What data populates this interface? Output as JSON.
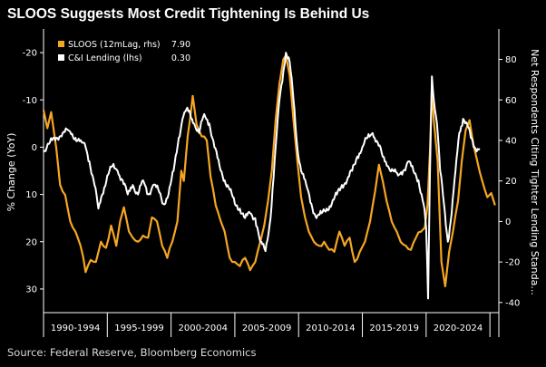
{
  "chart_data": {
    "type": "line",
    "title": "SLOOS Suggests Most Credit Tightening Is Behind Us",
    "source": "Source: Federal Reserve, Bloomberg Economics",
    "ylabel_left": "% Change (YoY)",
    "ylabel_right": "Net Respondents Citing Tighter Lending Standa...",
    "left_axis": {
      "ylim": [
        35,
        -25
      ],
      "ticks": [
        "-20",
        "-10",
        "0",
        "10",
        "20",
        "30"
      ],
      "inverted": true
    },
    "right_axis": {
      "ylim": [
        -45,
        95
      ],
      "ticks": [
        "80",
        "60",
        "40",
        "20",
        "0",
        "-20",
        "-40"
      ]
    },
    "x_categories": [
      "1990-1994",
      "1995-1999",
      "2000-2004",
      "2005-2009",
      "2010-2014",
      "2015-2019",
      "2020-2024"
    ],
    "xlim": [
      1990,
      2025.7
    ],
    "grid": false,
    "legend_position": "top-left",
    "series": [
      {
        "name": "SLOOS (12mLag, rhs)",
        "last_value": "7.90",
        "axis": "right",
        "color": "#f5a623",
        "points": [
          [
            1990.0,
            55
          ],
          [
            1990.3,
            46
          ],
          [
            1990.6,
            54
          ],
          [
            1991.0,
            36
          ],
          [
            1991.3,
            18
          ],
          [
            1991.7,
            13
          ],
          [
            1992.1,
            0
          ],
          [
            1992.5,
            -5
          ],
          [
            1992.9,
            -12
          ],
          [
            1993.3,
            -25
          ],
          [
            1993.7,
            -19
          ],
          [
            1994.1,
            -20
          ],
          [
            1994.5,
            -10
          ],
          [
            1994.9,
            -13
          ],
          [
            1995.3,
            -2
          ],
          [
            1995.7,
            -12
          ],
          [
            1996.0,
            0
          ],
          [
            1996.3,
            7
          ],
          [
            1996.7,
            -5
          ],
          [
            1997.0,
            -8
          ],
          [
            1997.4,
            -10
          ],
          [
            1997.8,
            -7
          ],
          [
            1998.2,
            -8
          ],
          [
            1998.5,
            2
          ],
          [
            1998.9,
            0
          ],
          [
            1999.3,
            -12
          ],
          [
            1999.7,
            -18
          ],
          [
            2000.1,
            -10
          ],
          [
            2000.5,
            0
          ],
          [
            2000.8,
            25
          ],
          [
            2001.0,
            20
          ],
          [
            2001.3,
            42
          ],
          [
            2001.7,
            62
          ],
          [
            2002.0,
            48
          ],
          [
            2002.4,
            42
          ],
          [
            2002.8,
            40
          ],
          [
            2003.1,
            22
          ],
          [
            2003.5,
            8
          ],
          [
            2003.9,
            0
          ],
          [
            2004.2,
            -5
          ],
          [
            2004.6,
            -18
          ],
          [
            2005.0,
            -20
          ],
          [
            2005.4,
            -22
          ],
          [
            2005.8,
            -18
          ],
          [
            2006.2,
            -24
          ],
          [
            2006.6,
            -20
          ],
          [
            2007.0,
            -10
          ],
          [
            2007.3,
            -2
          ],
          [
            2007.6,
            10
          ],
          [
            2007.9,
            25
          ],
          [
            2008.2,
            50
          ],
          [
            2008.5,
            68
          ],
          [
            2008.8,
            80
          ],
          [
            2009.0,
            82
          ],
          [
            2009.3,
            72
          ],
          [
            2009.6,
            50
          ],
          [
            2009.9,
            30
          ],
          [
            2010.2,
            12
          ],
          [
            2010.5,
            2
          ],
          [
            2010.8,
            -5
          ],
          [
            2011.2,
            -10
          ],
          [
            2011.6,
            -12
          ],
          [
            2012.0,
            -10
          ],
          [
            2012.4,
            -14
          ],
          [
            2012.8,
            -15
          ],
          [
            2013.2,
            -5
          ],
          [
            2013.6,
            -12
          ],
          [
            2014.0,
            -8
          ],
          [
            2014.4,
            -20
          ],
          [
            2014.8,
            -15
          ],
          [
            2015.2,
            -10
          ],
          [
            2015.6,
            0
          ],
          [
            2016.0,
            15
          ],
          [
            2016.3,
            28
          ],
          [
            2016.6,
            20
          ],
          [
            2016.9,
            10
          ],
          [
            2017.3,
            0
          ],
          [
            2017.7,
            -5
          ],
          [
            2018.0,
            -10
          ],
          [
            2018.4,
            -12
          ],
          [
            2018.8,
            -14
          ],
          [
            2019.2,
            -8
          ],
          [
            2019.6,
            -5
          ],
          [
            2019.9,
            -3
          ],
          [
            2020.1,
            8
          ],
          [
            2020.3,
            35
          ],
          [
            2020.45,
            66
          ],
          [
            2020.6,
            50
          ],
          [
            2020.9,
            30
          ],
          [
            2021.2,
            -20
          ],
          [
            2021.5,
            -32
          ],
          [
            2021.8,
            -15
          ],
          [
            2022.1,
            -5
          ],
          [
            2022.5,
            10
          ],
          [
            2022.8,
            30
          ],
          [
            2023.1,
            45
          ],
          [
            2023.4,
            50
          ],
          [
            2023.7,
            38
          ],
          [
            2024.0,
            30
          ],
          [
            2024.4,
            20
          ],
          [
            2024.8,
            12
          ],
          [
            2025.1,
            14
          ],
          [
            2025.4,
            8
          ]
        ]
      },
      {
        "name": "C&I Lending (lhs)",
        "last_value": "0.30",
        "axis": "left",
        "color": "#ffffff",
        "points": [
          [
            1990.0,
            1
          ],
          [
            1990.5,
            -1
          ],
          [
            1991.0,
            -2
          ],
          [
            1991.5,
            -3
          ],
          [
            1992.0,
            -3.5
          ],
          [
            1992.5,
            -2
          ],
          [
            1993.0,
            -1
          ],
          [
            1993.3,
            0
          ],
          [
            1993.6,
            3
          ],
          [
            1994.0,
            8
          ],
          [
            1994.3,
            13
          ],
          [
            1994.6,
            10
          ],
          [
            1995.0,
            6
          ],
          [
            1995.4,
            4
          ],
          [
            1995.8,
            5
          ],
          [
            1996.2,
            7
          ],
          [
            1996.6,
            10
          ],
          [
            1997.0,
            8
          ],
          [
            1997.4,
            10
          ],
          [
            1997.8,
            7
          ],
          [
            1998.2,
            10
          ],
          [
            1998.6,
            8
          ],
          [
            1999.0,
            9
          ],
          [
            1999.4,
            12
          ],
          [
            1999.8,
            10
          ],
          [
            2000.2,
            5
          ],
          [
            2000.6,
            -2
          ],
          [
            2000.9,
            -6
          ],
          [
            2001.2,
            -8
          ],
          [
            2001.5,
            -7
          ],
          [
            2001.8,
            -5
          ],
          [
            2002.2,
            -3
          ],
          [
            2002.6,
            -7
          ],
          [
            2003.0,
            -5
          ],
          [
            2003.4,
            0
          ],
          [
            2003.8,
            4
          ],
          [
            2004.2,
            7
          ],
          [
            2004.6,
            9
          ],
          [
            2005.0,
            12
          ],
          [
            2005.4,
            13
          ],
          [
            2005.8,
            15
          ],
          [
            2006.2,
            14
          ],
          [
            2006.6,
            15
          ],
          [
            2007.0,
            20
          ],
          [
            2007.4,
            22
          ],
          [
            2007.8,
            15
          ],
          [
            2008.2,
            0
          ],
          [
            2008.5,
            -10
          ],
          [
            2008.8,
            -16
          ],
          [
            2009.0,
            -20
          ],
          [
            2009.3,
            -18
          ],
          [
            2009.6,
            -10
          ],
          [
            2009.9,
            0
          ],
          [
            2010.2,
            5
          ],
          [
            2010.6,
            8
          ],
          [
            2011.0,
            12
          ],
          [
            2011.4,
            15
          ],
          [
            2011.8,
            14
          ],
          [
            2012.2,
            13
          ],
          [
            2012.6,
            12
          ],
          [
            2013.0,
            10
          ],
          [
            2013.4,
            8
          ],
          [
            2013.8,
            7
          ],
          [
            2014.2,
            5
          ],
          [
            2014.6,
            2
          ],
          [
            2015.0,
            0
          ],
          [
            2015.4,
            -2
          ],
          [
            2015.8,
            -3
          ],
          [
            2016.2,
            -1
          ],
          [
            2016.6,
            2
          ],
          [
            2017.0,
            4
          ],
          [
            2017.4,
            5
          ],
          [
            2017.8,
            6
          ],
          [
            2018.2,
            5
          ],
          [
            2018.6,
            3
          ],
          [
            2019.0,
            5
          ],
          [
            2019.4,
            7
          ],
          [
            2019.8,
            12
          ],
          [
            2020.0,
            17
          ],
          [
            2020.15,
            32
          ],
          [
            2020.3,
            5
          ],
          [
            2020.45,
            -15
          ],
          [
            2020.6,
            -10
          ],
          [
            2020.85,
            -5
          ],
          [
            2021.1,
            5
          ],
          [
            2021.4,
            12
          ],
          [
            2021.7,
            20
          ],
          [
            2022.0,
            14
          ],
          [
            2022.3,
            5
          ],
          [
            2022.6,
            -3
          ],
          [
            2022.9,
            -6
          ],
          [
            2023.2,
            -5
          ],
          [
            2023.5,
            -2
          ],
          [
            2023.8,
            0
          ],
          [
            2024.2,
            0.3
          ]
        ]
      }
    ]
  }
}
